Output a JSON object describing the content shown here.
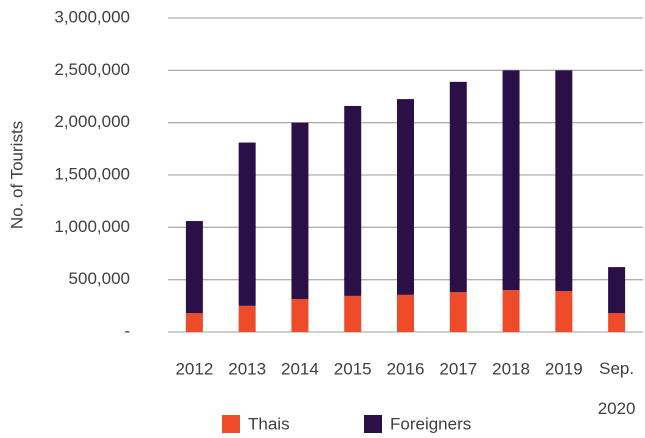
{
  "chart_data": {
    "type": "stacked_bar",
    "y_label": "No. of Tourists",
    "categories": [
      "2012",
      "2013",
      "2014",
      "2015",
      "2016",
      "2017",
      "2018",
      "2019",
      "Sep. 2020"
    ],
    "series": [
      {
        "name": "Thais",
        "color": "#ee4b2b",
        "values": [
          180000,
          250000,
          315000,
          345000,
          355000,
          380000,
          400000,
          390000,
          180000
        ]
      },
      {
        "name": "Foreigners",
        "color": "#2b0f47",
        "values": [
          880000,
          1560000,
          1685000,
          1815000,
          1870000,
          2010000,
          2100000,
          2110000,
          440000
        ]
      }
    ],
    "ylim": [
      0,
      3000000
    ],
    "yticks": [
      {
        "value": 0,
        "label": "-"
      },
      {
        "value": 500000,
        "label": "500,000"
      },
      {
        "value": 1000000,
        "label": "1,000,000"
      },
      {
        "value": 1500000,
        "label": "1,500,000"
      },
      {
        "value": 2000000,
        "label": "2,000,000"
      },
      {
        "value": 2500000,
        "label": "2,500,000"
      },
      {
        "value": 3000000,
        "label": "3,000,000"
      }
    ],
    "grid": true,
    "legend": "bottom"
  }
}
